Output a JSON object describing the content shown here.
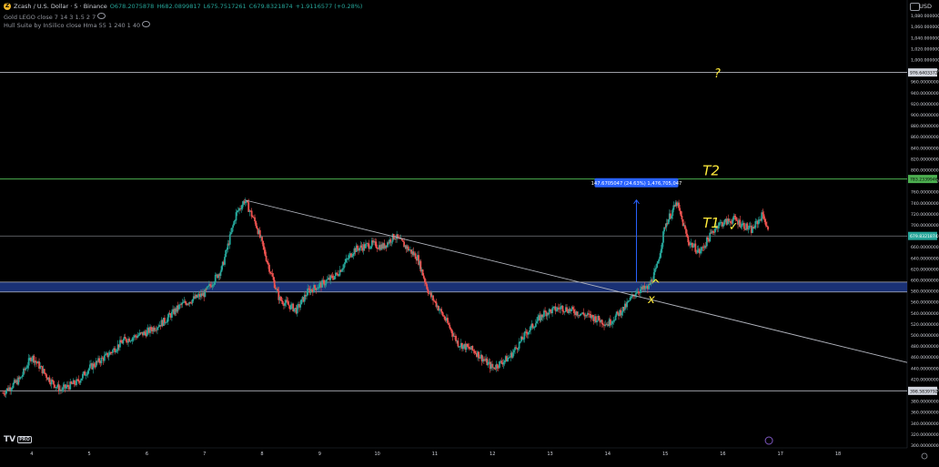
{
  "header": {
    "symbol": "Zcash / U.S. Dollar · 5 · Binance",
    "open": "O678.2075878",
    "high": "H682.0899817",
    "low": "L675.7517261",
    "close": "C679.8321874",
    "change": "+1.9116577 (+0.28%)",
    "indicator1": "Gold LEGO close 7 14 3 1.5 2 7",
    "indicator2": "Hull Suite by InSilico close Hma 55 1 240 1 40",
    "currency": "USD"
  },
  "colors": {
    "background": "#000000",
    "up": "#26a69a",
    "down": "#ef5350",
    "zone": "#1e3a8a",
    "trendline": "#b2b5be",
    "green_line": "#4caf50",
    "annotation": "#ffeb3b",
    "measure": "#2962ff"
  },
  "chart_data": {
    "type": "candlestick",
    "x_axis": {
      "labels": [
        "4",
        "5",
        "6",
        "7",
        "8",
        "9",
        "10",
        "11",
        "12",
        "13",
        "14",
        "15",
        "16",
        "17",
        "18"
      ],
      "unit": "day of month"
    },
    "y_axis": {
      "range": [
        295,
        1095
      ],
      "ticks": [
        "300.0000000",
        "320.0000000",
        "340.0000000",
        "360.0000000",
        "380.0000000",
        "400.0000000",
        "420.0000000",
        "440.0000000",
        "460.0000000",
        "480.0000000",
        "500.0000000",
        "520.0000000",
        "540.0000000",
        "560.0000000",
        "580.0000000",
        "600.0000000",
        "620.0000000",
        "640.0000000",
        "660.0000000",
        "680.0000000",
        "700.0000000",
        "720.0000000",
        "740.0000000",
        "760.0000000",
        "780.0000000",
        "800.0000000",
        "820.0000000",
        "840.0000000",
        "860.0000000",
        "880.0000000",
        "900.0000000",
        "920.0000000",
        "940.0000000",
        "960.0000000",
        "980.0000000",
        "1,000.0000000",
        "1,020.0000000",
        "1,040.0000000",
        "1,060.0000000",
        "1,080.0000000"
      ],
      "tick_values": [
        300,
        320,
        340,
        360,
        380,
        400,
        420,
        440,
        460,
        480,
        500,
        520,
        540,
        560,
        580,
        600,
        620,
        640,
        660,
        680,
        700,
        720,
        740,
        760,
        780,
        800,
        820,
        840,
        860,
        880,
        900,
        920,
        940,
        960,
        980,
        1000,
        1020,
        1040,
        1060,
        1080
      ]
    },
    "price_path": [
      [
        3.5,
        395
      ],
      [
        3.8,
        420
      ],
      [
        4.0,
        462
      ],
      [
        4.3,
        420
      ],
      [
        4.5,
        400
      ],
      [
        4.8,
        415
      ],
      [
        5.0,
        440
      ],
      [
        5.3,
        462
      ],
      [
        5.6,
        490
      ],
      [
        6.0,
        505
      ],
      [
        6.3,
        525
      ],
      [
        6.6,
        555
      ],
      [
        7.0,
        575
      ],
      [
        7.3,
        620
      ],
      [
        7.55,
        720
      ],
      [
        7.7,
        745
      ],
      [
        7.9,
        700
      ],
      [
        8.1,
        630
      ],
      [
        8.3,
        565
      ],
      [
        8.6,
        545
      ],
      [
        8.8,
        580
      ],
      [
        9.0,
        590
      ],
      [
        9.3,
        610
      ],
      [
        9.6,
        655
      ],
      [
        9.9,
        665
      ],
      [
        10.1,
        660
      ],
      [
        10.3,
        680
      ],
      [
        10.5,
        660
      ],
      [
        10.7,
        640
      ],
      [
        10.9,
        575
      ],
      [
        11.0,
        560
      ],
      [
        11.2,
        525
      ],
      [
        11.4,
        485
      ],
      [
        11.7,
        470
      ],
      [
        12.0,
        440
      ],
      [
        12.3,
        460
      ],
      [
        12.6,
        505
      ],
      [
        12.9,
        540
      ],
      [
        13.2,
        550
      ],
      [
        13.5,
        540
      ],
      [
        13.8,
        530
      ],
      [
        14.0,
        520
      ],
      [
        14.3,
        550
      ],
      [
        14.5,
        580
      ],
      [
        14.7,
        585
      ],
      [
        14.85,
        620
      ],
      [
        15.0,
        700
      ],
      [
        15.2,
        740
      ],
      [
        15.4,
        670
      ],
      [
        15.6,
        650
      ],
      [
        15.9,
        700
      ],
      [
        16.2,
        710
      ],
      [
        16.5,
        690
      ],
      [
        16.7,
        720
      ],
      [
        16.8,
        680
      ]
    ],
    "last_price": 679.8321874,
    "horizontal_lines": [
      {
        "price": 976.6403372,
        "label": "976.6403372",
        "color": "#b2b5be"
      },
      {
        "price": 783.2339946,
        "label": "783.2339946",
        "color": "#4caf50"
      },
      {
        "price": 679.8321874,
        "label": "679.8321874",
        "color": "#b2b5be"
      },
      {
        "price": 398.5839792,
        "label": "398.5839792",
        "color": "#b2b5be"
      }
    ],
    "zone": {
      "from": 578,
      "to": 596
    },
    "trendline": {
      "from": [
        7.7,
        745
      ],
      "to": [
        19.2,
        450
      ]
    },
    "measure": {
      "x": 14.5,
      "from": 596,
      "to": 745,
      "label": "147.6705047 (24.63%) 1,476,705,047"
    },
    "annotations": [
      {
        "text": "?",
        "x": 15.85,
        "price": 968
      },
      {
        "text": "T2",
        "x": 15.65,
        "price": 790
      },
      {
        "text": "T1",
        "x": 15.65,
        "price": 695
      },
      {
        "text": "✓",
        "x": 16.1,
        "price": 690
      },
      {
        "text": "^",
        "x": 14.75,
        "price": 585
      },
      {
        "text": "x",
        "x": 14.7,
        "price": 558
      }
    ],
    "x_range": [
      3.45,
      19.2
    ]
  }
}
